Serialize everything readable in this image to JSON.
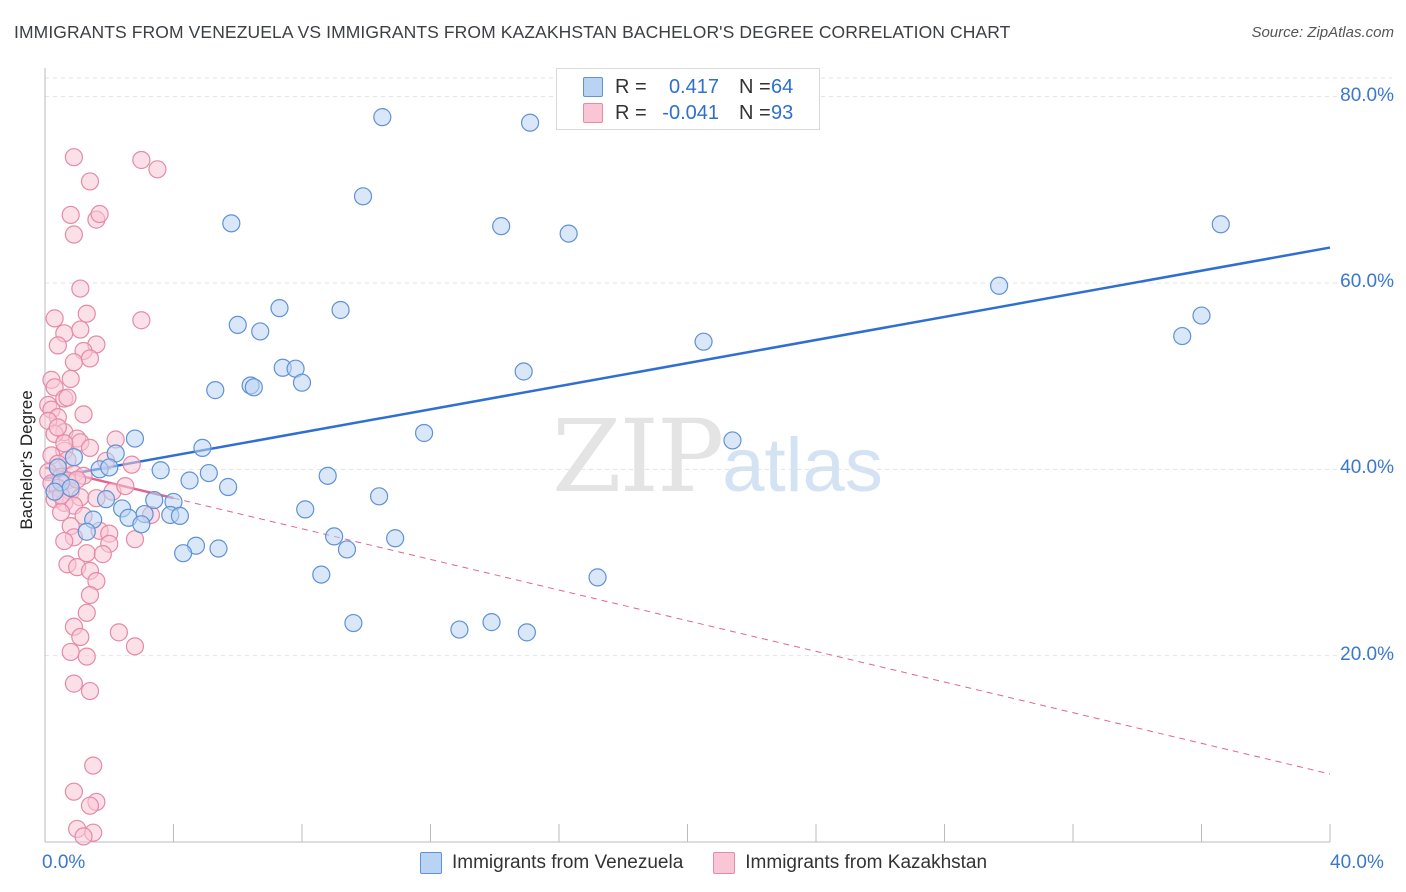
{
  "title": "IMMIGRANTS FROM VENEZUELA VS IMMIGRANTS FROM KAZAKHSTAN BACHELOR'S DEGREE CORRELATION CHART",
  "source": "Source: ZipAtlas.com",
  "watermark": {
    "zip": "ZIP",
    "atlas": "atlas"
  },
  "legend": {
    "r_label": "R =",
    "n_label": "N =",
    "venezuela": {
      "r": "0.417",
      "n": "64"
    },
    "kazakhstan": {
      "r": "-0.041",
      "n": "93"
    }
  },
  "colors": {
    "venezuela_fill": "#b9d3f3",
    "venezuela_stroke": "#5f92d6",
    "venezuela_line": "#2f6fd2",
    "kazakhstan_fill": "#f9c6d6",
    "kazakhstan_stroke": "#e58aa8",
    "kazakhstan_line": "#e0668f",
    "grid": "#e3e3e3",
    "axis_text": "#3a78cc"
  },
  "chart_data": {
    "type": "scatter",
    "title": "IMMIGRANTS FROM VENEZUELA VS IMMIGRANTS FROM KAZAKHSTAN BACHELOR'S DEGREE CORRELATION CHART",
    "xlabel": "",
    "ylabel": "Bachelor's Degree",
    "xlim": [
      0,
      40
    ],
    "ylim": [
      0,
      82
    ],
    "x_ticks": [
      {
        "v": 0,
        "label": "0.0%"
      },
      {
        "v": 40,
        "label": "40.0%"
      }
    ],
    "y_ticks": [
      {
        "v": 20,
        "label": "20.0%"
      },
      {
        "v": 40,
        "label": "40.0%"
      },
      {
        "v": 60,
        "label": "60.0%"
      },
      {
        "v": 80,
        "label": "80.0%"
      }
    ],
    "legend_position": "top-center",
    "series": [
      {
        "name": "Immigrants from Venezuela",
        "trend": {
          "x0": 0,
          "y0": 39,
          "x1": 40,
          "y1": 63.8,
          "style": "solid"
        },
        "points": [
          [
            10.5,
            77.8
          ],
          [
            15.1,
            77.2
          ],
          [
            9.9,
            69.3
          ],
          [
            5.8,
            66.4
          ],
          [
            14.2,
            66.1
          ],
          [
            16.3,
            65.3
          ],
          [
            36.6,
            66.3
          ],
          [
            29.7,
            59.7
          ],
          [
            7.3,
            57.3
          ],
          [
            9.2,
            57.1
          ],
          [
            36.0,
            56.5
          ],
          [
            6.0,
            55.5
          ],
          [
            6.7,
            54.8
          ],
          [
            35.4,
            54.3
          ],
          [
            20.5,
            53.7
          ],
          [
            7.4,
            50.9
          ],
          [
            7.8,
            50.8
          ],
          [
            14.9,
            50.5
          ],
          [
            8.0,
            49.3
          ],
          [
            6.4,
            49.0
          ],
          [
            6.5,
            48.8
          ],
          [
            5.3,
            48.5
          ],
          [
            11.8,
            43.9
          ],
          [
            21.4,
            43.1
          ],
          [
            2.8,
            43.3
          ],
          [
            4.9,
            42.3
          ],
          [
            2.2,
            41.7
          ],
          [
            0.9,
            41.3
          ],
          [
            0.4,
            40.2
          ],
          [
            1.7,
            40.0
          ],
          [
            2.0,
            40.2
          ],
          [
            3.6,
            39.9
          ],
          [
            5.1,
            39.6
          ],
          [
            8.8,
            39.3
          ],
          [
            4.5,
            38.8
          ],
          [
            0.5,
            38.6
          ],
          [
            0.8,
            38.0
          ],
          [
            5.7,
            38.1
          ],
          [
            0.3,
            37.6
          ],
          [
            1.9,
            36.8
          ],
          [
            3.4,
            36.7
          ],
          [
            4.0,
            36.5
          ],
          [
            10.4,
            37.1
          ],
          [
            2.4,
            35.8
          ],
          [
            8.1,
            35.7
          ],
          [
            3.1,
            35.2
          ],
          [
            3.9,
            35.1
          ],
          [
            4.2,
            35.0
          ],
          [
            2.6,
            34.8
          ],
          [
            1.5,
            34.6
          ],
          [
            3.0,
            34.1
          ],
          [
            1.3,
            33.3
          ],
          [
            9.0,
            32.8
          ],
          [
            10.9,
            32.6
          ],
          [
            4.7,
            31.8
          ],
          [
            5.4,
            31.5
          ],
          [
            9.4,
            31.4
          ],
          [
            4.3,
            31.0
          ],
          [
            8.6,
            28.7
          ],
          [
            17.2,
            28.4
          ],
          [
            13.9,
            23.6
          ],
          [
            9.6,
            23.5
          ],
          [
            12.9,
            22.8
          ],
          [
            15.0,
            22.5
          ]
        ]
      },
      {
        "name": "Immigrants from Kazakhstan",
        "trend": {
          "x0": 0,
          "y0": 40.2,
          "x1": 40,
          "y1": 7.3,
          "solid_until_x": 4.0,
          "style": "solid-then-dashed"
        },
        "points": [
          [
            0.9,
            73.5
          ],
          [
            3.0,
            73.2
          ],
          [
            3.5,
            72.2
          ],
          [
            1.4,
            70.9
          ],
          [
            0.8,
            67.3
          ],
          [
            1.6,
            66.8
          ],
          [
            1.7,
            67.4
          ],
          [
            0.9,
            65.2
          ],
          [
            1.1,
            59.4
          ],
          [
            0.3,
            56.2
          ],
          [
            1.3,
            56.7
          ],
          [
            3.0,
            56.0
          ],
          [
            0.6,
            54.6
          ],
          [
            1.1,
            55.0
          ],
          [
            0.4,
            53.3
          ],
          [
            1.6,
            53.4
          ],
          [
            1.2,
            52.7
          ],
          [
            0.9,
            51.5
          ],
          [
            1.4,
            51.9
          ],
          [
            0.2,
            49.6
          ],
          [
            0.8,
            49.7
          ],
          [
            0.3,
            48.8
          ],
          [
            0.6,
            47.6
          ],
          [
            0.7,
            47.7
          ],
          [
            0.1,
            46.9
          ],
          [
            0.2,
            46.4
          ],
          [
            1.2,
            45.9
          ],
          [
            0.4,
            45.6
          ],
          [
            0.1,
            45.2
          ],
          [
            0.6,
            44.0
          ],
          [
            1.0,
            43.3
          ],
          [
            0.3,
            43.8
          ],
          [
            2.2,
            43.2
          ],
          [
            1.1,
            42.9
          ],
          [
            0.6,
            42.0
          ],
          [
            1.4,
            42.3
          ],
          [
            0.2,
            41.5
          ],
          [
            0.7,
            41.0
          ],
          [
            1.9,
            40.9
          ],
          [
            2.7,
            40.5
          ],
          [
            0.4,
            40.6
          ],
          [
            0.1,
            39.7
          ],
          [
            0.9,
            39.5
          ],
          [
            0.5,
            39.2
          ],
          [
            1.2,
            39.3
          ],
          [
            0.7,
            38.8
          ],
          [
            0.2,
            38.5
          ],
          [
            0.4,
            38.0
          ],
          [
            0.8,
            37.6
          ],
          [
            1.1,
            37.0
          ],
          [
            0.3,
            36.8
          ],
          [
            0.6,
            36.4
          ],
          [
            0.9,
            36.1
          ],
          [
            1.6,
            36.9
          ],
          [
            2.1,
            37.6
          ],
          [
            0.5,
            35.4
          ],
          [
            1.2,
            35.0
          ],
          [
            3.3,
            35.1
          ],
          [
            0.8,
            33.9
          ],
          [
            1.7,
            33.4
          ],
          [
            2.0,
            33.1
          ],
          [
            0.9,
            32.7
          ],
          [
            0.6,
            32.3
          ],
          [
            2.0,
            32.0
          ],
          [
            2.8,
            32.5
          ],
          [
            1.3,
            31.0
          ],
          [
            0.7,
            29.8
          ],
          [
            1.0,
            29.5
          ],
          [
            1.4,
            29.1
          ],
          [
            1.6,
            28.0
          ],
          [
            1.4,
            26.5
          ],
          [
            1.3,
            24.6
          ],
          [
            0.9,
            23.1
          ],
          [
            2.3,
            22.5
          ],
          [
            1.1,
            22.0
          ],
          [
            2.8,
            21.0
          ],
          [
            0.8,
            20.4
          ],
          [
            1.3,
            19.9
          ],
          [
            0.9,
            17.0
          ],
          [
            1.4,
            16.2
          ],
          [
            1.5,
            8.2
          ],
          [
            0.9,
            5.4
          ],
          [
            1.6,
            4.3
          ],
          [
            1.4,
            3.9
          ],
          [
            1.0,
            1.4
          ],
          [
            1.5,
            1.0
          ],
          [
            1.2,
            0.6
          ],
          [
            0.6,
            42.8
          ],
          [
            0.4,
            44.5
          ],
          [
            1.8,
            30.9
          ],
          [
            0.5,
            37.2
          ],
          [
            2.5,
            38.2
          ],
          [
            1.0,
            38.9
          ]
        ]
      }
    ]
  },
  "bottom_legend": {
    "venezuela": "Immigrants from Venezuela",
    "kazakhstan": "Immigrants from Kazakhstan"
  }
}
